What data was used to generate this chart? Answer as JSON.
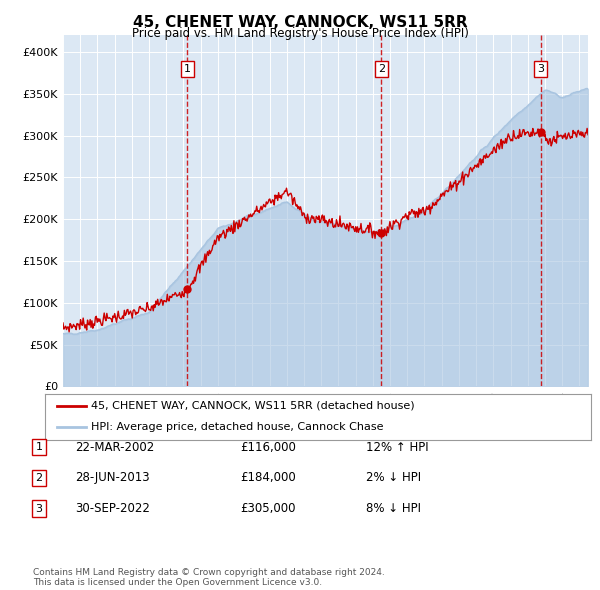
{
  "title": "45, CHENET WAY, CANNOCK, WS11 5RR",
  "subtitle": "Price paid vs. HM Land Registry's House Price Index (HPI)",
  "plot_bg_color": "#dce8f4",
  "ylim": [
    0,
    420000
  ],
  "yticks": [
    0,
    50000,
    100000,
    150000,
    200000,
    250000,
    300000,
    350000,
    400000
  ],
  "ytick_labels": [
    "£0",
    "£50K",
    "£100K",
    "£150K",
    "£200K",
    "£250K",
    "£300K",
    "£350K",
    "£400K"
  ],
  "sale_dates": [
    2002.22,
    2013.49,
    2022.75
  ],
  "sale_prices": [
    116000,
    184000,
    305000
  ],
  "sale_labels": [
    "1",
    "2",
    "3"
  ],
  "vline_color": "#cc0000",
  "sale_dot_color": "#cc0000",
  "legend_line1": "45, CHENET WAY, CANNOCK, WS11 5RR (detached house)",
  "legend_line2": "HPI: Average price, detached house, Cannock Chase",
  "table_entries": [
    {
      "label": "1",
      "date": "22-MAR-2002",
      "price": "£116,000",
      "change": "12% ↑ HPI"
    },
    {
      "label": "2",
      "date": "28-JUN-2013",
      "price": "£184,000",
      "change": "2% ↓ HPI"
    },
    {
      "label": "3",
      "date": "30-SEP-2022",
      "price": "£305,000",
      "change": "8% ↓ HPI"
    }
  ],
  "footnote": "Contains HM Land Registry data © Crown copyright and database right 2024.\nThis data is licensed under the Open Government Licence v3.0.",
  "hpi_color": "#a8c4e0",
  "price_line_color": "#cc0000",
  "xstart": 1995,
  "xend": 2025.5
}
